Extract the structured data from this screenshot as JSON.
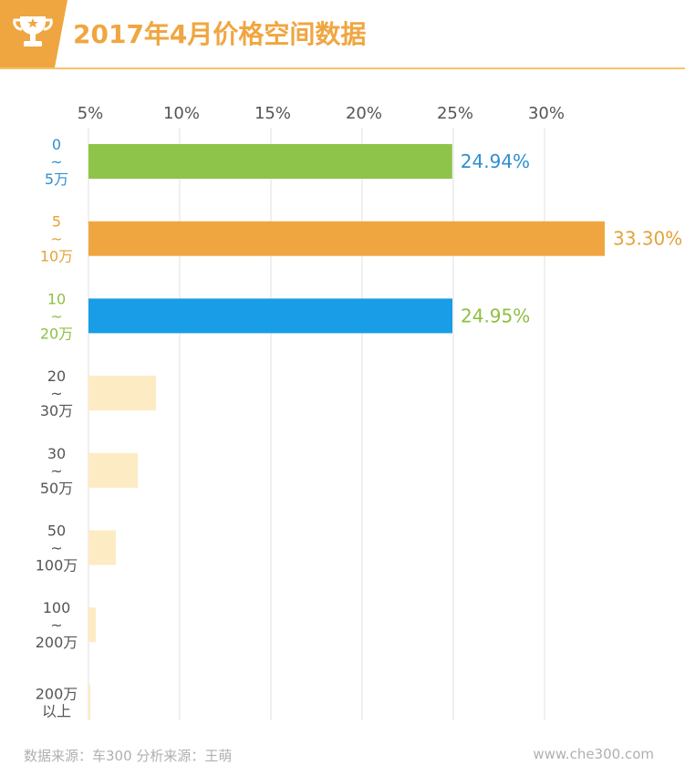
{
  "header": {
    "title": "2017年4月价格空间数据",
    "icon": "trophy-icon",
    "accent": "#f0a640"
  },
  "chart_data": {
    "type": "bar",
    "orientation": "horizontal",
    "title": "2017年4月价格空间数据",
    "xlim": [
      5,
      33.3
    ],
    "xticks": [
      "5%",
      "10%",
      "15%",
      "20%",
      "25%",
      "30%"
    ],
    "xtick_values": [
      5,
      10,
      15,
      20,
      25,
      30
    ],
    "grid": true,
    "categories": [
      [
        "0",
        "~",
        "5万"
      ],
      [
        "5",
        "~",
        "10万"
      ],
      [
        "10",
        "~",
        "20万"
      ],
      [
        "20",
        "~",
        "30万"
      ],
      [
        "30",
        "~",
        "50万"
      ],
      [
        "50",
        "~",
        "100万"
      ],
      [
        "100",
        "~",
        "200万"
      ],
      [
        "200万",
        "以上"
      ]
    ],
    "values": [
      24.94,
      33.3,
      24.95,
      8.7,
      7.7,
      6.5,
      5.4,
      5.1
    ],
    "data_labels": [
      "24.94%",
      "33.30%",
      "24.95%",
      "",
      "",
      "",
      "",
      ""
    ],
    "bar_colors": [
      "#8fc44a",
      "#f0a640",
      "#189de6",
      "#fdebc3",
      "#fdebc3",
      "#fdebc3",
      "#fdebc3",
      "#fdebc3"
    ],
    "category_colors": [
      "#2f8fd0",
      "#e6a239",
      "#8fbf40",
      "#555555",
      "#555555",
      "#555555",
      "#555555",
      "#555555"
    ],
    "data_label_colors": [
      "#2f8fd0",
      "#e6a239",
      "#8fbf40"
    ]
  },
  "footer": {
    "source": "数据来源：车300 分析来源：王萌",
    "website": "www.che300.com"
  }
}
